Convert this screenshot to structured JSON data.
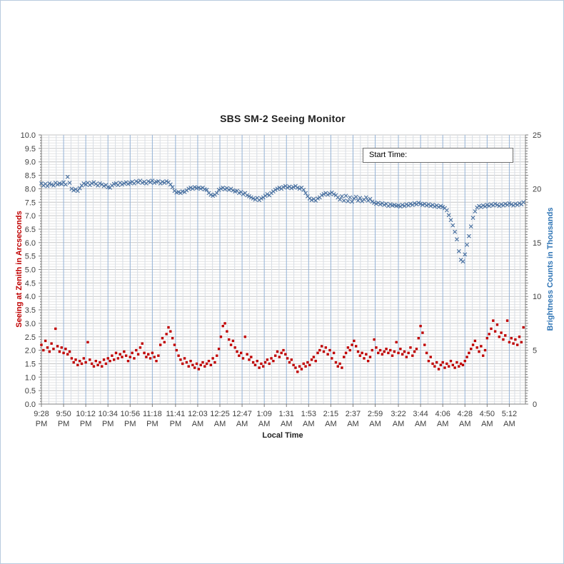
{
  "chart": {
    "title": "SBS SM-2 Seeing Monitor",
    "annotation": {
      "label": "Start Time:",
      "value": ""
    },
    "left_axis": {
      "title": "Seeing at Zenith in Arcseconds",
      "color": "#C00000",
      "tick_labels": [
        "0.0",
        "0.5",
        "1.0",
        "1.5",
        "2.0",
        "2.5",
        "3.0",
        "3.5",
        "4.0",
        "4.5",
        "5.0",
        "5.5",
        "6.0",
        "6.5",
        "7.0",
        "7.5",
        "8.0",
        "8.5",
        "9.0",
        "9.5",
        "10.0"
      ]
    },
    "right_axis": {
      "title": "Brightness Counts in Thousands",
      "color": "#2E74B5",
      "tick_labels": [
        "0",
        "5",
        "10",
        "15",
        "20",
        "25"
      ]
    },
    "x_axis": {
      "title": "Local Time"
    },
    "colors": {
      "grid_minor_h": "#e4e4e4",
      "grid_major_h": "#c6c6c6",
      "grid_minor_v": "#d7dde5",
      "grid_major_v": "#95b3d7",
      "axis_line": "#7f7f7f",
      "tick_label": "#404040",
      "seeing_series": "#C00000",
      "brightness_series": "#4f75a3"
    }
  },
  "chart_data": {
    "type": "scatter",
    "title": "SBS SM-2 Seeing Monitor",
    "xlabel": "Local Time",
    "left_ylabel": "Seeing at Zenith in Arcseconds",
    "right_ylabel": "Brightness Counts in Thousands",
    "left_ylim": [
      0,
      10
    ],
    "left_major_step": 0.5,
    "left_minor_step": 0.1,
    "right_ylim": [
      0,
      25
    ],
    "right_major_step": 5,
    "x_range_minutes": [
      0,
      480
    ],
    "grid": "both",
    "legend": "none",
    "x_ticks": [
      {
        "minute": 0,
        "time": "9:28",
        "meridiem": "PM"
      },
      {
        "minute": 22,
        "time": "9:50",
        "meridiem": "PM"
      },
      {
        "minute": 44,
        "time": "10:12",
        "meridiem": "PM"
      },
      {
        "minute": 66,
        "time": "10:34",
        "meridiem": "PM"
      },
      {
        "minute": 88,
        "time": "10:56",
        "meridiem": "PM"
      },
      {
        "minute": 110,
        "time": "11:18",
        "meridiem": "PM"
      },
      {
        "minute": 133,
        "time": "11:41",
        "meridiem": "PM"
      },
      {
        "minute": 155,
        "time": "12:03",
        "meridiem": "AM"
      },
      {
        "minute": 177,
        "time": "12:25",
        "meridiem": "AM"
      },
      {
        "minute": 199,
        "time": "12:47",
        "meridiem": "AM"
      },
      {
        "minute": 221,
        "time": "1:09",
        "meridiem": "AM"
      },
      {
        "minute": 243,
        "time": "1:31",
        "meridiem": "AM"
      },
      {
        "minute": 265,
        "time": "1:53",
        "meridiem": "AM"
      },
      {
        "minute": 287,
        "time": "2:15",
        "meridiem": "AM"
      },
      {
        "minute": 309,
        "time": "2:37",
        "meridiem": "AM"
      },
      {
        "minute": 331,
        "time": "2:59",
        "meridiem": "AM"
      },
      {
        "minute": 354,
        "time": "3:22",
        "meridiem": "AM"
      },
      {
        "minute": 376,
        "time": "3:44",
        "meridiem": "AM"
      },
      {
        "minute": 398,
        "time": "4:06",
        "meridiem": "AM"
      },
      {
        "minute": 420,
        "time": "4:28",
        "meridiem": "AM"
      },
      {
        "minute": 442,
        "time": "4:50",
        "meridiem": "AM"
      },
      {
        "minute": 464,
        "time": "5:12",
        "meridiem": "AM"
      }
    ],
    "series": [
      {
        "name": "Brightness Counts in Thousands",
        "axis": "right",
        "marker": "x",
        "color": "#4f75a3",
        "start_min": 0,
        "step_min": 2,
        "values": [
          20.5,
          20.3,
          20.45,
          20.25,
          20.5,
          20.4,
          20.3,
          20.55,
          20.4,
          20.5,
          20.45,
          20.6,
          20.4,
          21.1,
          20.55,
          20.0,
          19.85,
          19.95,
          19.8,
          20.05,
          20.3,
          20.5,
          20.4,
          20.55,
          20.35,
          20.5,
          20.6,
          20.45,
          20.3,
          20.5,
          20.4,
          20.25,
          20.35,
          20.15,
          20.1,
          20.3,
          20.45,
          20.5,
          20.35,
          20.55,
          20.4,
          20.5,
          20.6,
          20.45,
          20.55,
          20.65,
          20.5,
          20.7,
          20.6,
          20.75,
          20.55,
          20.65,
          20.5,
          20.7,
          20.6,
          20.75,
          20.55,
          20.65,
          20.7,
          20.5,
          20.65,
          20.55,
          20.7,
          20.6,
          20.4,
          20.15,
          19.8,
          19.65,
          19.7,
          19.6,
          19.75,
          19.7,
          19.85,
          20.0,
          20.1,
          20.0,
          20.15,
          20.05,
          20.1,
          20.0,
          20.1,
          19.95,
          19.9,
          19.6,
          19.45,
          19.35,
          19.45,
          19.6,
          19.9,
          20.0,
          20.1,
          19.95,
          20.05,
          19.9,
          20.0,
          19.85,
          19.75,
          19.8,
          19.6,
          19.7,
          19.5,
          19.6,
          19.4,
          19.3,
          19.2,
          19.1,
          19.0,
          19.15,
          18.95,
          19.1,
          19.2,
          19.35,
          19.5,
          19.4,
          19.6,
          19.75,
          19.9,
          20.0,
          20.1,
          20.0,
          20.15,
          20.25,
          20.1,
          20.2,
          20.05,
          20.15,
          20.25,
          20.1,
          20.0,
          20.1,
          19.9,
          19.6,
          19.3,
          19.1,
          18.95,
          19.05,
          18.9,
          19.1,
          19.2,
          19.4,
          19.5,
          19.6,
          19.45,
          19.55,
          19.65,
          19.5,
          19.4,
          19.2,
          19.0,
          19.3,
          18.9,
          19.35,
          18.85,
          19.2,
          18.8,
          19.1,
          19.25,
          18.9,
          19.15,
          18.85,
          19.0,
          19.2,
          18.9,
          19.05,
          18.8,
          18.7,
          18.6,
          18.7,
          18.55,
          18.65,
          18.5,
          18.6,
          18.4,
          18.55,
          18.45,
          18.5,
          18.4,
          18.45,
          18.35,
          18.5,
          18.4,
          18.55,
          18.45,
          18.6,
          18.5,
          18.65,
          18.55,
          18.7,
          18.6,
          18.5,
          18.6,
          18.45,
          18.55,
          18.4,
          18.5,
          18.35,
          18.45,
          18.3,
          18.4,
          18.3,
          18.2,
          18.0,
          17.55,
          17.1,
          16.6,
          16.0,
          15.3,
          14.2,
          13.4,
          13.25,
          13.9,
          14.8,
          15.6,
          16.5,
          17.3,
          17.9,
          18.25,
          18.4,
          18.3,
          18.45,
          18.35,
          18.5,
          18.4,
          18.55,
          18.45,
          18.6,
          18.5,
          18.4,
          18.55,
          18.45,
          18.6,
          18.5,
          18.65,
          18.55,
          18.45,
          18.6,
          18.5,
          18.65,
          18.55,
          18.75
        ]
      },
      {
        "name": "Seeing at Zenith in Arcseconds",
        "axis": "left",
        "marker": "square",
        "color": "#C00000",
        "start_min": 0,
        "step_min": 2,
        "values": [
          2.2,
          2.0,
          2.35,
          2.1,
          1.95,
          2.25,
          2.05,
          2.8,
          2.15,
          1.95,
          2.1,
          1.9,
          2.05,
          1.85,
          1.95,
          1.7,
          1.55,
          1.65,
          1.45,
          1.6,
          1.5,
          1.7,
          1.55,
          2.3,
          1.65,
          1.5,
          1.4,
          1.6,
          1.45,
          1.55,
          1.4,
          1.65,
          1.5,
          1.7,
          1.6,
          1.8,
          1.65,
          1.9,
          1.7,
          1.85,
          1.75,
          1.95,
          1.8,
          1.6,
          1.75,
          1.9,
          1.7,
          2.0,
          1.85,
          2.1,
          2.25,
          1.9,
          1.75,
          1.85,
          1.7,
          1.9,
          1.75,
          1.6,
          1.8,
          2.2,
          2.45,
          2.3,
          2.6,
          2.85,
          2.7,
          2.45,
          2.2,
          2.0,
          1.8,
          1.65,
          1.5,
          1.7,
          1.55,
          1.4,
          1.6,
          1.45,
          1.35,
          1.5,
          1.3,
          1.45,
          1.55,
          1.4,
          1.5,
          1.6,
          1.45,
          1.7,
          1.55,
          1.8,
          2.05,
          2.5,
          2.9,
          3.0,
          2.7,
          2.4,
          2.2,
          2.35,
          2.1,
          1.95,
          1.8,
          1.9,
          1.7,
          2.5,
          1.85,
          1.65,
          1.75,
          1.55,
          1.45,
          1.6,
          1.35,
          1.5,
          1.4,
          1.55,
          1.65,
          1.5,
          1.7,
          1.6,
          1.8,
          1.95,
          1.75,
          1.9,
          2.0,
          1.85,
          1.7,
          1.55,
          1.65,
          1.45,
          1.35,
          1.2,
          1.4,
          1.3,
          1.5,
          1.4,
          1.55,
          1.45,
          1.65,
          1.75,
          1.6,
          1.9,
          2.0,
          2.15,
          1.95,
          2.1,
          1.85,
          2.0,
          1.7,
          1.9,
          1.55,
          1.4,
          1.5,
          1.35,
          1.75,
          1.9,
          2.1,
          2.0,
          2.2,
          2.35,
          2.15,
          1.95,
          1.8,
          1.9,
          1.7,
          1.85,
          1.6,
          1.75,
          2.0,
          2.4,
          2.1,
          1.9,
          2.0,
          1.85,
          1.95,
          2.05,
          1.9,
          2.0,
          1.8,
          1.95,
          2.3,
          1.9,
          2.05,
          1.85,
          1.95,
          1.75,
          1.9,
          2.1,
          1.8,
          1.95,
          2.05,
          2.45,
          2.9,
          2.65,
          2.2,
          1.9,
          1.6,
          1.75,
          1.5,
          1.4,
          1.55,
          1.3,
          1.45,
          1.55,
          1.35,
          1.5,
          1.4,
          1.6,
          1.45,
          1.35,
          1.55,
          1.4,
          1.5,
          1.45,
          1.6,
          1.75,
          1.9,
          2.05,
          2.2,
          2.35,
          2.1,
          1.95,
          2.15,
          1.8,
          2.0,
          2.45,
          2.6,
          2.8,
          3.1,
          2.7,
          2.95,
          2.5,
          2.65,
          2.4,
          2.55,
          3.1,
          2.3,
          2.45,
          2.25,
          2.4,
          2.2,
          2.5,
          2.3,
          2.85
        ]
      }
    ]
  }
}
